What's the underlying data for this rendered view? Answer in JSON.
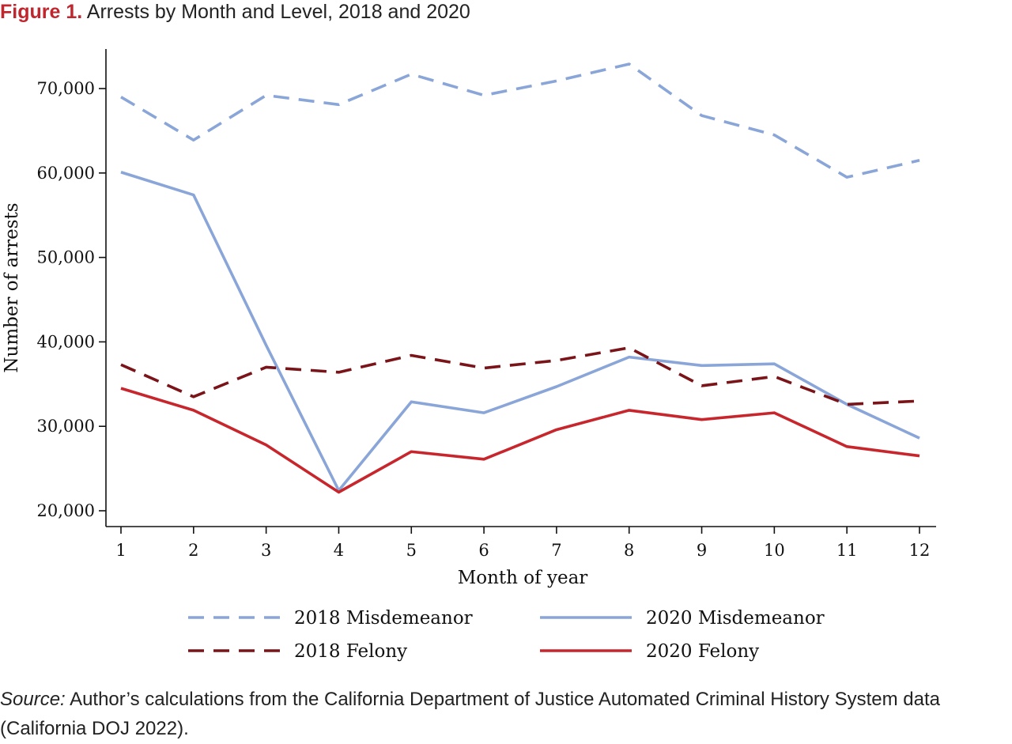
{
  "figure": {
    "label": "Figure 1.",
    "title": "Arrests by Month and Level, 2018 and 2020"
  },
  "source": {
    "label": "Source:",
    "text": "Author’s calculations from the California Department of Justice Automated Criminal History System data (California DOJ 2022)."
  },
  "chart_data": {
    "type": "line",
    "title": "Arrests by Month and Level, 2018 and 2020",
    "xlabel": "Month of year",
    "ylabel": "Number of arrests",
    "x": [
      1,
      2,
      3,
      4,
      5,
      6,
      7,
      8,
      9,
      10,
      11,
      12
    ],
    "xlim": [
      1,
      12
    ],
    "ylim": [
      18000,
      75000
    ],
    "yticks": [
      20000,
      30000,
      40000,
      50000,
      60000,
      70000
    ],
    "ytick_labels": [
      "20,000",
      "30,000",
      "40,000",
      "50,000",
      "60,000",
      "70,000"
    ],
    "grid": false,
    "legend_position": "bottom",
    "series": [
      {
        "name": "2018 Misdemeanor",
        "color": "#8aa6d8",
        "style": "dashed",
        "values": [
          69000,
          63900,
          69200,
          68100,
          71700,
          69200,
          70900,
          72900,
          66800,
          64500,
          59500,
          61500
        ]
      },
      {
        "name": "2020 Misdemeanor",
        "color": "#8aa6d8",
        "style": "solid",
        "values": [
          60100,
          57400,
          39600,
          22400,
          32900,
          31600,
          34700,
          38200,
          37200,
          37400,
          32600,
          28600
        ]
      },
      {
        "name": "2018 Felony",
        "color": "#7a1418",
        "style": "dashed",
        "values": [
          37300,
          33500,
          37000,
          36400,
          38400,
          36900,
          37800,
          39300,
          34800,
          35900,
          32600,
          33000
        ]
      },
      {
        "name": "2020 Felony",
        "color": "#c8262d",
        "style": "solid",
        "values": [
          34500,
          31900,
          27800,
          22200,
          27000,
          26100,
          29600,
          31900,
          30800,
          31600,
          27600,
          26500
        ]
      }
    ]
  }
}
